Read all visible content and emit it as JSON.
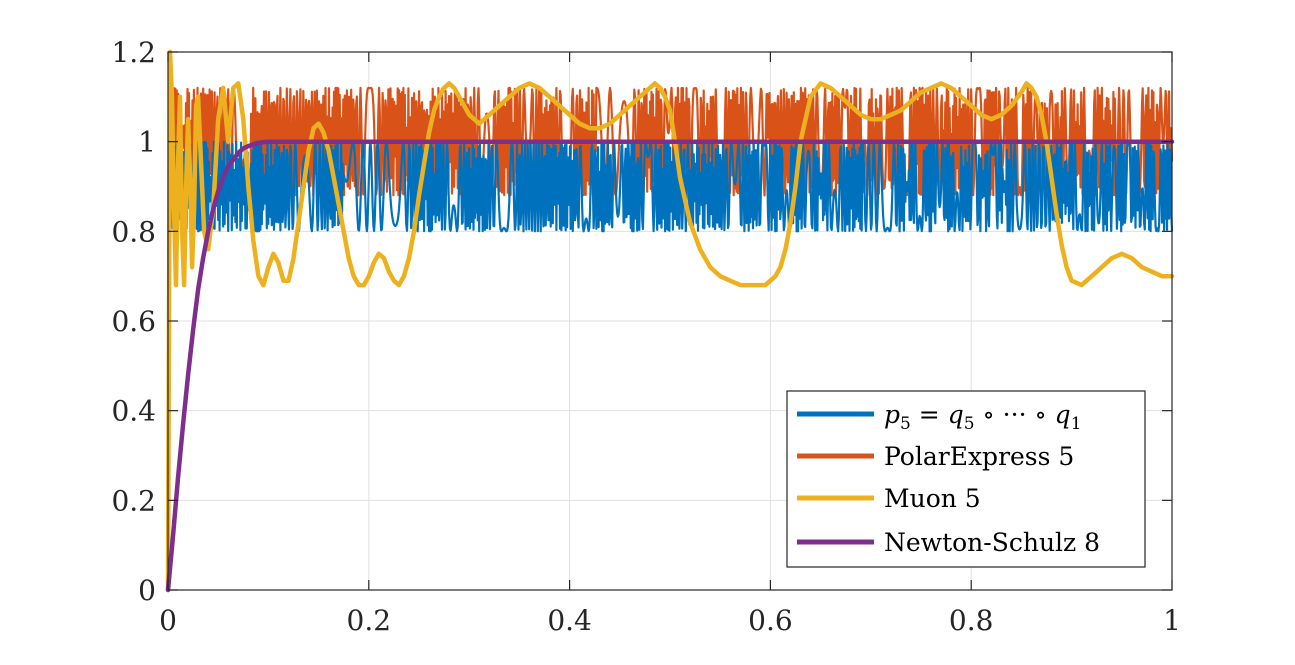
{
  "chart_data": {
    "type": "line",
    "title": "",
    "xlabel": "",
    "ylabel": "",
    "xlim": [
      0,
      1
    ],
    "ylim": [
      0,
      1.2
    ],
    "grid": true,
    "legend_position": "bottom-right",
    "x_ticks": [
      0,
      0.2,
      0.4,
      0.6,
      0.8,
      1
    ],
    "x_tick_labels": [
      "0",
      "0.2",
      "0.4",
      "0.6",
      "0.8",
      "1"
    ],
    "y_ticks": [
      0,
      0.2,
      0.4,
      0.6,
      0.8,
      1,
      1.2
    ],
    "y_tick_labels": [
      "0",
      "0.2",
      "0.4",
      "0.6",
      "0.8",
      "1",
      "1.2"
    ],
    "series": [
      {
        "name": "p5 = q5 ∘ ··· ∘ q1",
        "color": "#0072BD",
        "behavior": "rises from 0 to about 0.9 near x=0.003, then oscillates rapidly between 0.8 and 1.0 across the whole range",
        "x": [
          0,
          0.001,
          0.003
        ],
        "y": [
          0,
          0.6,
          0.9
        ],
        "oscillation_band": [
          0.8,
          1.0
        ]
      },
      {
        "name": "PolarExpress 5",
        "color": "#D95319",
        "behavior": "rises from 0 like the blue curve, then oscillates rapidly between about 0.88 and 1.12 across the whole range",
        "x": [
          0,
          0.001,
          0.003
        ],
        "y": [
          0,
          0.6,
          0.9
        ],
        "oscillation_band": [
          0.88,
          1.12
        ]
      },
      {
        "name": "Muon 5",
        "color": "#EDB120",
        "x": [
          0,
          0.002,
          0.004,
          0.006,
          0.008,
          0.01,
          0.012,
          0.014,
          0.016,
          0.018,
          0.02,
          0.022,
          0.024,
          0.026,
          0.028,
          0.03,
          0.033,
          0.036,
          0.04,
          0.045,
          0.05,
          0.055,
          0.06,
          0.065,
          0.07,
          0.075,
          0.08,
          0.085,
          0.09,
          0.095,
          0.1,
          0.105,
          0.11,
          0.115,
          0.12,
          0.125,
          0.13,
          0.135,
          0.14,
          0.145,
          0.15,
          0.155,
          0.16,
          0.165,
          0.17,
          0.175,
          0.18,
          0.185,
          0.19,
          0.195,
          0.2,
          0.205,
          0.21,
          0.215,
          0.22,
          0.225,
          0.23,
          0.235,
          0.24,
          0.245,
          0.25,
          0.255,
          0.26,
          0.265,
          0.27,
          0.275,
          0.28,
          0.285,
          0.29,
          0.295,
          0.3,
          0.305,
          0.31,
          0.315,
          0.32,
          0.33,
          0.34,
          0.35,
          0.36,
          0.37,
          0.38,
          0.39,
          0.4,
          0.41,
          0.42,
          0.43,
          0.44,
          0.45,
          0.46,
          0.47,
          0.48,
          0.485,
          0.49,
          0.495,
          0.5,
          0.505,
          0.51,
          0.52,
          0.53,
          0.54,
          0.55,
          0.56,
          0.57,
          0.58,
          0.59,
          0.595,
          0.6,
          0.605,
          0.61,
          0.615,
          0.62,
          0.625,
          0.63,
          0.64,
          0.65,
          0.66,
          0.67,
          0.68,
          0.69,
          0.7,
          0.71,
          0.72,
          0.73,
          0.74,
          0.75,
          0.76,
          0.77,
          0.78,
          0.79,
          0.8,
          0.81,
          0.82,
          0.83,
          0.84,
          0.85,
          0.855,
          0.86,
          0.865,
          0.87,
          0.875,
          0.88,
          0.885,
          0.89,
          0.895,
          0.9,
          0.91,
          0.92,
          0.93,
          0.94,
          0.95,
          0.96,
          0.97,
          0.98,
          0.99,
          1.0
        ],
        "y": [
          0,
          1.2,
          1.1,
          0.85,
          0.68,
          0.95,
          1.1,
          0.8,
          0.68,
          0.9,
          1.05,
          0.92,
          0.72,
          0.85,
          1.08,
          1.1,
          0.95,
          0.8,
          0.76,
          0.85,
          1.05,
          1.12,
          1.0,
          1.12,
          1.13,
          1.05,
          0.9,
          0.78,
          0.7,
          0.68,
          0.72,
          0.75,
          0.73,
          0.69,
          0.69,
          0.74,
          0.82,
          0.9,
          0.98,
          1.03,
          1.04,
          1.02,
          0.98,
          0.92,
          0.86,
          0.8,
          0.74,
          0.7,
          0.68,
          0.68,
          0.7,
          0.73,
          0.75,
          0.74,
          0.71,
          0.69,
          0.68,
          0.7,
          0.74,
          0.8,
          0.88,
          0.95,
          1.02,
          1.07,
          1.1,
          1.12,
          1.13,
          1.12,
          1.1,
          1.08,
          1.06,
          1.05,
          1.04,
          1.05,
          1.06,
          1.08,
          1.1,
          1.12,
          1.13,
          1.12,
          1.1,
          1.08,
          1.06,
          1.04,
          1.03,
          1.03,
          1.04,
          1.06,
          1.08,
          1.1,
          1.12,
          1.13,
          1.12,
          1.1,
          1.07,
          1.0,
          0.92,
          0.82,
          0.76,
          0.72,
          0.7,
          0.69,
          0.68,
          0.68,
          0.68,
          0.68,
          0.69,
          0.7,
          0.72,
          0.76,
          0.82,
          0.9,
          1.0,
          1.1,
          1.13,
          1.12,
          1.1,
          1.08,
          1.06,
          1.05,
          1.05,
          1.06,
          1.07,
          1.09,
          1.11,
          1.12,
          1.13,
          1.12,
          1.1,
          1.08,
          1.06,
          1.05,
          1.06,
          1.08,
          1.11,
          1.13,
          1.12,
          1.1,
          1.06,
          1.0,
          0.92,
          0.84,
          0.77,
          0.72,
          0.69,
          0.68,
          0.7,
          0.72,
          0.74,
          0.75,
          0.74,
          0.72,
          0.71,
          0.7,
          0.7
        ]
      },
      {
        "name": "Newton-Schulz 8",
        "color": "#7E2F8E",
        "x": [
          0,
          0.005,
          0.01,
          0.015,
          0.02,
          0.025,
          0.03,
          0.035,
          0.04,
          0.045,
          0.05,
          0.055,
          0.06,
          0.065,
          0.07,
          0.075,
          0.08,
          0.085,
          0.09,
          0.095,
          0.1,
          0.12,
          0.15,
          0.2,
          0.4,
          0.6,
          0.8,
          1.0
        ],
        "y": [
          0,
          0.12,
          0.25,
          0.37,
          0.48,
          0.58,
          0.67,
          0.74,
          0.8,
          0.85,
          0.89,
          0.92,
          0.945,
          0.96,
          0.975,
          0.985,
          0.99,
          0.994,
          0.997,
          0.999,
          1.0,
          1.0,
          1.0,
          1.0,
          1.0,
          1.0,
          1.0,
          1.0
        ]
      }
    ]
  },
  "legend": {
    "items": [
      {
        "label_main": "p",
        "label_sub": "5",
        "label_rest": " = ",
        "label_main2": "q",
        "label_sub2": "5",
        "label_rest2": " ∘ ··· ∘ ",
        "label_main3": "q",
        "label_sub3": "1"
      },
      {
        "label": "PolarExpress 5"
      },
      {
        "label": "Muon 5"
      },
      {
        "label": "Newton-Schulz 8"
      }
    ]
  }
}
